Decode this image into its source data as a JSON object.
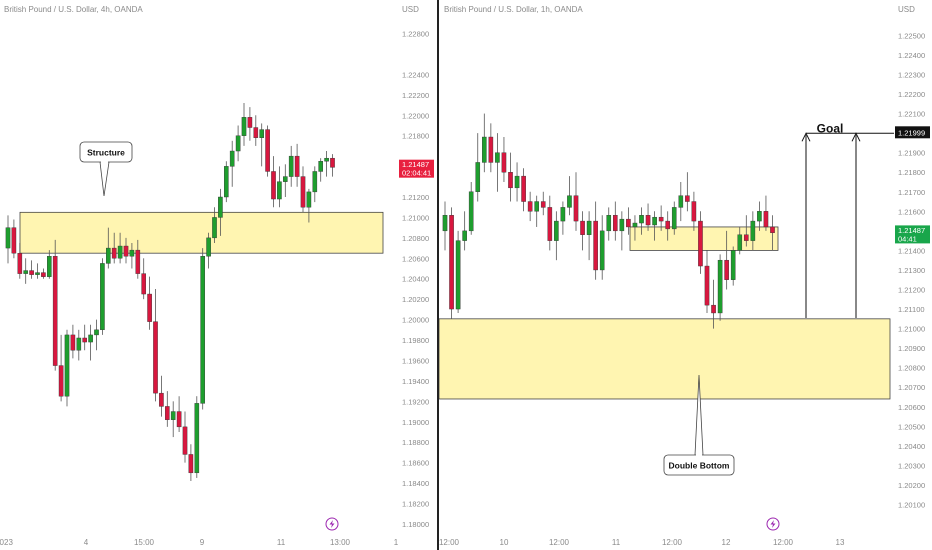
{
  "colors": {
    "bull": "#1e9e2e",
    "bear": "#d8173f",
    "zone_fill": "#fff5b1",
    "zone_border": "#444444",
    "axis_text": "#8a8a8a",
    "price_tag_red": "#e8203f",
    "price_tag_green": "#19a64b",
    "lightning": "#9c27b0"
  },
  "lightning_icon": "lightning-bolt-icon",
  "chart_data": [
    {
      "type": "candlestick",
      "title": "British Pound / U.S. Dollar, 4h, OANDA",
      "currency": "USD",
      "ylim": [
        1.1796,
        1.2305
      ],
      "y_ticks": [
        "1.22800",
        "1.22400",
        "1.22200",
        "1.22000",
        "1.21800",
        "1.21200",
        "1.21000",
        "1.20800",
        "1.20600",
        "1.20400",
        "1.20200",
        "1.20000",
        "1.19800",
        "1.19600",
        "1.19400",
        "1.19200",
        "1.19000",
        "1.18800",
        "1.18600",
        "1.18400",
        "1.18200",
        "1.18000"
      ],
      "x_ticks": [
        "2023",
        "4",
        "15:00",
        "9",
        "11",
        "13:00",
        "1"
      ],
      "last_price": {
        "value": "1.21487",
        "countdown": "02:04:41"
      },
      "zones": [
        {
          "from": 1.2065,
          "to": 1.2105
        }
      ],
      "annotations": [
        "Structure"
      ],
      "candles": [
        [
          1.207,
          1.2102,
          1.2055,
          1.209
        ],
        [
          1.209,
          1.2098,
          1.206,
          1.2065
        ],
        [
          1.2065,
          1.2075,
          1.204,
          1.2045
        ],
        [
          1.2045,
          1.206,
          1.2035,
          1.2048
        ],
        [
          1.2048,
          1.2058,
          1.204,
          1.2044
        ],
        [
          1.2044,
          1.2055,
          1.204,
          1.2046
        ],
        [
          1.2046,
          1.205,
          1.204,
          1.2042
        ],
        [
          1.2042,
          1.2068,
          1.204,
          1.2062
        ],
        [
          1.2062,
          1.2078,
          1.195,
          1.1955
        ],
        [
          1.1955,
          1.1985,
          1.192,
          1.1925
        ],
        [
          1.1925,
          1.199,
          1.1915,
          1.1985
        ],
        [
          1.1985,
          1.1995,
          1.1962,
          1.197
        ],
        [
          1.197,
          1.199,
          1.196,
          1.1982
        ],
        [
          1.1982,
          1.1995,
          1.197,
          1.1978
        ],
        [
          1.1978,
          1.1995,
          1.196,
          1.1985
        ],
        [
          1.1985,
          1.2,
          1.197,
          1.199
        ],
        [
          1.199,
          1.206,
          1.1985,
          1.2055
        ],
        [
          1.2055,
          1.209,
          1.205,
          1.207
        ],
        [
          1.207,
          1.2085,
          1.2055,
          1.206
        ],
        [
          1.206,
          1.2085,
          1.2055,
          1.2072
        ],
        [
          1.2072,
          1.208,
          1.2055,
          1.2062
        ],
        [
          1.2062,
          1.2075,
          1.205,
          1.2068
        ],
        [
          1.2068,
          1.2078,
          1.204,
          1.2045
        ],
        [
          1.2045,
          1.206,
          1.202,
          1.2025
        ],
        [
          1.2025,
          1.2042,
          1.199,
          1.1998
        ],
        [
          1.1998,
          1.203,
          1.192,
          1.1928
        ],
        [
          1.1928,
          1.1945,
          1.1905,
          1.1915
        ],
        [
          1.1915,
          1.193,
          1.1895,
          1.1902
        ],
        [
          1.1902,
          1.192,
          1.1885,
          1.191
        ],
        [
          1.191,
          1.1925,
          1.189,
          1.1895
        ],
        [
          1.1895,
          1.191,
          1.186,
          1.1868
        ],
        [
          1.1868,
          1.1878,
          1.1842,
          1.185
        ],
        [
          1.185,
          1.1925,
          1.1845,
          1.1918
        ],
        [
          1.1918,
          1.207,
          1.1912,
          1.2062
        ],
        [
          1.2062,
          1.2085,
          1.205,
          1.208
        ],
        [
          1.208,
          1.211,
          1.2075,
          1.21
        ],
        [
          1.21,
          1.2128,
          1.2082,
          1.212
        ],
        [
          1.212,
          1.2155,
          1.2115,
          1.215
        ],
        [
          1.215,
          1.2175,
          1.213,
          1.2165
        ],
        [
          1.2165,
          1.219,
          1.2155,
          1.218
        ],
        [
          1.218,
          1.2212,
          1.217,
          1.2198
        ],
        [
          1.2198,
          1.2208,
          1.2175,
          1.2188
        ],
        [
          1.2188,
          1.22,
          1.217,
          1.2178
        ],
        [
          1.2178,
          1.2192,
          1.215,
          1.2186
        ],
        [
          1.2186,
          1.219,
          1.214,
          1.2145
        ],
        [
          1.2145,
          1.216,
          1.211,
          1.2118
        ],
        [
          1.2118,
          1.215,
          1.211,
          1.2135
        ],
        [
          1.2135,
          1.2152,
          1.212,
          1.214
        ],
        [
          1.214,
          1.217,
          1.213,
          1.216
        ],
        [
          1.216,
          1.2172,
          1.213,
          1.214
        ],
        [
          1.214,
          1.215,
          1.2105,
          1.211
        ],
        [
          1.211,
          1.2128,
          1.2095,
          1.2125
        ],
        [
          1.2125,
          1.215,
          1.2115,
          1.2145
        ],
        [
          1.2145,
          1.2158,
          1.2135,
          1.2155
        ],
        [
          1.2155,
          1.2165,
          1.214,
          1.2158
        ],
        [
          1.2158,
          1.2162,
          1.214,
          1.2149
        ]
      ]
    },
    {
      "type": "candlestick",
      "title": "British Pound / U.S. Dollar, 1h, OANDA",
      "currency": "USD",
      "ylim": [
        1.1998,
        1.2264
      ],
      "y_ticks": [
        "1.22500",
        "1.22400",
        "1.22300",
        "1.22200",
        "1.22100",
        "1.21900",
        "1.21800",
        "1.21700",
        "1.21600",
        "1.21400",
        "1.21300",
        "1.21200",
        "1.21100",
        "1.21000",
        "1.20900",
        "1.20800",
        "1.20700",
        "1.20600",
        "1.20500",
        "1.20400",
        "1.20300",
        "1.20200",
        "1.20100"
      ],
      "x_ticks": [
        "12:00",
        "10",
        "12:00",
        "11",
        "12:00",
        "12",
        "12:00",
        "13"
      ],
      "last_price": {
        "value": "1.21487",
        "countdown": "04:41"
      },
      "goal_price": "1.21999",
      "zones": [
        {
          "from": 1.214,
          "to": 1.2152
        },
        {
          "from": 1.2064,
          "to": 1.2105
        }
      ],
      "annotations": [
        "Goal",
        "Double Bottom"
      ],
      "candles": [
        [
          1.215,
          1.2165,
          1.214,
          1.2158
        ],
        [
          1.2158,
          1.2162,
          1.2105,
          1.211
        ],
        [
          1.211,
          1.215,
          1.2108,
          1.2145
        ],
        [
          1.2145,
          1.216,
          1.214,
          1.215
        ],
        [
          1.215,
          1.2175,
          1.2148,
          1.217
        ],
        [
          1.217,
          1.22,
          1.2165,
          1.2185
        ],
        [
          1.2185,
          1.221,
          1.218,
          1.2198
        ],
        [
          1.2198,
          1.2205,
          1.218,
          1.2185
        ],
        [
          1.2185,
          1.22,
          1.217,
          1.219
        ],
        [
          1.219,
          1.2198,
          1.2175,
          1.218
        ],
        [
          1.218,
          1.219,
          1.2165,
          1.2172
        ],
        [
          1.2172,
          1.2185,
          1.2165,
          1.2178
        ],
        [
          1.2178,
          1.2182,
          1.216,
          1.2165
        ],
        [
          1.2165,
          1.217,
          1.2155,
          1.216
        ],
        [
          1.216,
          1.2168,
          1.2152,
          1.2165
        ],
        [
          1.2165,
          1.217,
          1.2158,
          1.2162
        ],
        [
          1.2162,
          1.2168,
          1.214,
          1.2145
        ],
        [
          1.2145,
          1.216,
          1.2135,
          1.2155
        ],
        [
          1.2155,
          1.2165,
          1.2148,
          1.2162
        ],
        [
          1.2162,
          1.2178,
          1.2158,
          1.2168
        ],
        [
          1.2168,
          1.218,
          1.215,
          1.2155
        ],
        [
          1.2155,
          1.216,
          1.214,
          1.2148
        ],
        [
          1.2148,
          1.216,
          1.2135,
          1.2155
        ],
        [
          1.2155,
          1.2165,
          1.2125,
          1.213
        ],
        [
          1.213,
          1.2158,
          1.2125,
          1.215
        ],
        [
          1.215,
          1.2162,
          1.2145,
          1.2158
        ],
        [
          1.2158,
          1.2165,
          1.2145,
          1.215
        ],
        [
          1.215,
          1.216,
          1.214,
          1.2156
        ],
        [
          1.2156,
          1.2162,
          1.2148,
          1.2152
        ],
        [
          1.2152,
          1.2158,
          1.2145,
          1.2154
        ],
        [
          1.2154,
          1.2162,
          1.2148,
          1.2158
        ],
        [
          1.2158,
          1.2164,
          1.215,
          1.2153
        ],
        [
          1.2153,
          1.216,
          1.2145,
          1.2157
        ],
        [
          1.2157,
          1.2163,
          1.215,
          1.2155
        ],
        [
          1.2155,
          1.216,
          1.2145,
          1.2151
        ],
        [
          1.2151,
          1.2165,
          1.2148,
          1.2162
        ],
        [
          1.2162,
          1.2175,
          1.2155,
          1.2168
        ],
        [
          1.2168,
          1.218,
          1.216,
          1.2165
        ],
        [
          1.2165,
          1.217,
          1.215,
          1.2155
        ],
        [
          1.2155,
          1.216,
          1.2128,
          1.2132
        ],
        [
          1.2132,
          1.214,
          1.2108,
          1.2112
        ],
        [
          1.2112,
          1.2125,
          1.21,
          1.2108
        ],
        [
          1.2108,
          1.2138,
          1.2104,
          1.2135
        ],
        [
          1.2135,
          1.215,
          1.212,
          1.2125
        ],
        [
          1.2125,
          1.2142,
          1.2122,
          1.214
        ],
        [
          1.214,
          1.2152,
          1.2138,
          1.2148
        ],
        [
          1.2148,
          1.2158,
          1.2142,
          1.2145
        ],
        [
          1.2145,
          1.216,
          1.214,
          1.2155
        ],
        [
          1.2155,
          1.2165,
          1.215,
          1.216
        ],
        [
          1.216,
          1.2168,
          1.215,
          1.2152
        ],
        [
          1.2152,
          1.2158,
          1.214,
          1.2149
        ]
      ]
    }
  ]
}
